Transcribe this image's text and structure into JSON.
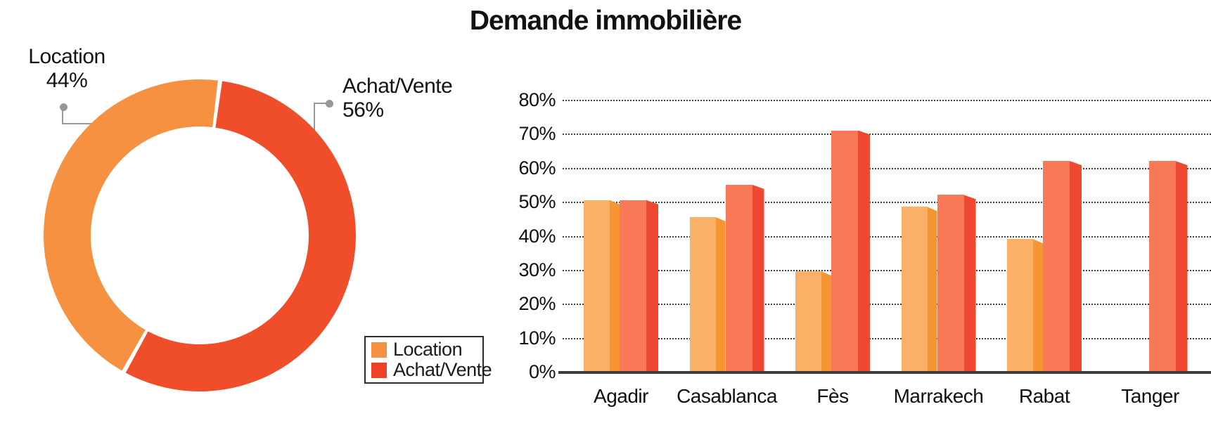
{
  "title": "Demande immobilière",
  "colors": {
    "donut_location": "#F79142",
    "donut_achat": "#F04D2B",
    "bar_location_front": "#FBB068",
    "bar_location_side": "#F79434",
    "bar_achat_front": "#F87858",
    "bar_achat_side": "#F04830",
    "axis_line": "#3d3d3d",
    "gridline": "#3c3c3c",
    "callout": "#979797",
    "text": "#141414"
  },
  "donut": {
    "labels": [
      {
        "name": "Location",
        "value_label": "44%"
      },
      {
        "name": "Achat/Vente",
        "value_label": "56%"
      }
    ]
  },
  "legend": {
    "items": [
      {
        "label": "Location",
        "color": "#F79142"
      },
      {
        "label": "Achat/Vente",
        "color": "#EF4128"
      }
    ]
  },
  "chart_data": [
    {
      "type": "pie",
      "subtype": "donut",
      "title": "Demande immobilière",
      "labels": [
        "Location",
        "Achat/Vente"
      ],
      "values": [
        44,
        56
      ],
      "unit": "%",
      "colors": [
        "#F79142",
        "#F04D2B"
      ],
      "start_angle_deg_from_top": 7.5,
      "direction": "clockwise"
    },
    {
      "type": "bar",
      "title": "Demande immobilière",
      "categories": [
        "Agadir",
        "Casablanca",
        "Fès",
        "Marrakech",
        "Rabat",
        "Tanger"
      ],
      "series": [
        {
          "name": "Location",
          "values": [
            50.5,
            45.5,
            29.5,
            48.5,
            39,
            0
          ]
        },
        {
          "name": "Achat/Vente",
          "values": [
            50.5,
            55,
            71,
            52,
            62,
            62
          ]
        }
      ],
      "xlabel": "",
      "ylabel": "",
      "ylim": [
        0,
        80
      ],
      "yticks": [
        "0%",
        "10%",
        "20%",
        "30%",
        "40%",
        "50%",
        "60%",
        "70%",
        "80%"
      ],
      "grid": "horizontal-dotted",
      "legend_position": "bottom-left-of-donut",
      "bar_style": "pseudo-3d (front face + darker beveled right side)"
    }
  ]
}
